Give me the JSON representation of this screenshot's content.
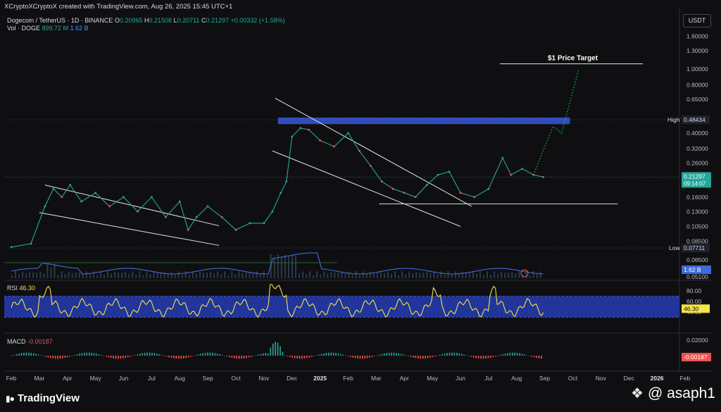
{
  "header": {
    "attribution": "XCryptoXCryptoX created with TradingView.com, Aug 26, 2025 15:45 UTC+1",
    "symbol_line": "Dogecoin / TetherUS · 1D · BINANCE",
    "ohlc": {
      "o_label": "O",
      "o": "0.20965",
      "h_label": "H",
      "h": "0.21508",
      "l_label": "L",
      "l": "0.20711",
      "c_label": "C",
      "c": "0.21297",
      "change": "+0.00332 (+1.58%)"
    },
    "vol_label": "Vol · DOGE",
    "vol_value": "899.72 M",
    "vol_ma": "1.62 B",
    "currency": "USDT"
  },
  "colors": {
    "bg": "#0f0f12",
    "up": "#26a69a",
    "down": "#ef5350",
    "price": "#d7d9df",
    "zone": "#3450c8",
    "rsi": "#f2e44a",
    "rsi_band": "#21359a",
    "volume_ma": "#3f6bd6",
    "target": "#21c05a"
  },
  "annotations": {
    "target_label": "$1 Price Target",
    "high_label": "High",
    "high_value": "0.48434",
    "low_label": "Low",
    "low_value": "0.07711",
    "last_price": "0.21297",
    "countdown": "09:14:07",
    "volume_ma_tag": "1.62 B"
  },
  "rsi": {
    "label": "RSI",
    "value": "46.30",
    "levels": [
      "80.00",
      "60.00",
      "40.00"
    ]
  },
  "macd": {
    "label": "MACD",
    "value": "-0.00187",
    "ticks": [
      "0.02000",
      "0.00000"
    ]
  },
  "branding": {
    "tradingview": "TradingView",
    "watermark": "@ asaph1"
  },
  "chart_data": {
    "type": "line",
    "scale": "log",
    "ylim": [
      0.05,
      1.8
    ],
    "y_ticks": [
      1.6,
      1.3,
      1.0,
      0.8,
      0.65,
      0.5,
      0.4,
      0.32,
      0.26,
      0.16,
      0.13,
      0.105,
      0.085,
      0.065,
      0.051
    ],
    "y_tick_labels": [
      "1.60000",
      "1.30000",
      "1.00000",
      "0.80000",
      "0.65000",
      "0.50000",
      "0.40000",
      "0.32000",
      "0.26000",
      "0.16000",
      "0.13000",
      "0.10500",
      "0.08500",
      "0.06500",
      "0.05100"
    ],
    "x_labels": [
      "Feb",
      "Mar",
      "Apr",
      "May",
      "Jun",
      "Jul",
      "Aug",
      "Sep",
      "Oct",
      "Nov",
      "Dec",
      "2025",
      "Feb",
      "Mar",
      "Apr",
      "May",
      "Jun",
      "Jul",
      "Aug",
      "Sep",
      "Oct",
      "Nov",
      "Dec",
      "2026",
      "Feb"
    ],
    "x": [
      0,
      0.7,
      1.2,
      1.5,
      1.8,
      2.1,
      2.5,
      3.0,
      3.5,
      4.0,
      4.5,
      5.0,
      5.5,
      6.0,
      6.3,
      6.6,
      7.0,
      7.5,
      8.0,
      8.5,
      9.0,
      9.3,
      9.6,
      9.8,
      10.0,
      10.3,
      10.6,
      11.0,
      11.5,
      12.0,
      12.4,
      12.8,
      13.2,
      13.6,
      14.0,
      14.4,
      14.8,
      15.2,
      15.6,
      16.0,
      16.5,
      17.0,
      17.5,
      17.8,
      18.2,
      18.6,
      18.95
    ],
    "close": [
      0.078,
      0.082,
      0.14,
      0.18,
      0.16,
      0.19,
      0.15,
      0.17,
      0.14,
      0.16,
      0.13,
      0.16,
      0.12,
      0.15,
      0.1,
      0.12,
      0.14,
      0.12,
      0.1,
      0.11,
      0.11,
      0.13,
      0.17,
      0.2,
      0.38,
      0.43,
      0.42,
      0.36,
      0.33,
      0.4,
      0.31,
      0.25,
      0.2,
      0.18,
      0.17,
      0.16,
      0.19,
      0.22,
      0.23,
      0.17,
      0.16,
      0.18,
      0.28,
      0.22,
      0.24,
      0.22,
      0.213
    ],
    "series": [
      {
        "name": "Dogecoin / TetherUS"
      }
    ],
    "projection": {
      "x": [
        18.6,
        19.0,
        19.3,
        19.6,
        20.2
      ],
      "y": [
        0.22,
        0.33,
        0.44,
        0.4,
        0.98
      ]
    },
    "high_zone": [
      0.455,
      0.5
    ],
    "support": 0.145
  }
}
